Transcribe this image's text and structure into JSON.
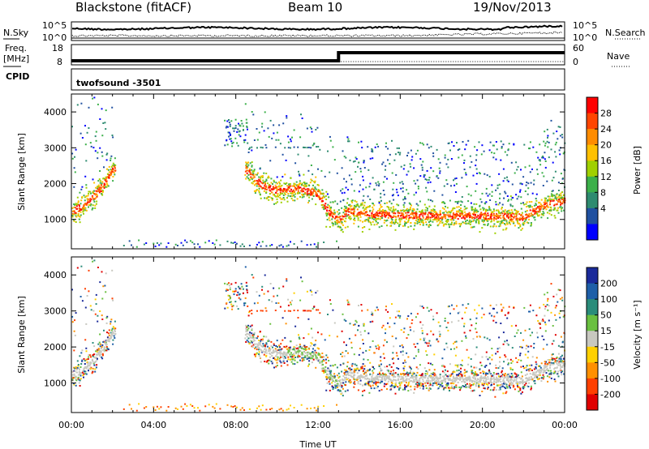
{
  "header": {
    "station": "Blackstone (fitACF)",
    "beam": "Beam 10",
    "date": "19/Nov/2013"
  },
  "noise_panel": {
    "left_label": "N.Sky",
    "right_label": "N.Search",
    "left_ticks": [
      "10^5",
      "10^0"
    ],
    "right_ticks": [
      "10^5",
      "10^0"
    ]
  },
  "freq_panel": {
    "left_label_line1": "Freq.",
    "left_label_line2": "[MHz]",
    "right_label": "Nave",
    "left_ticks": [
      "18",
      "8"
    ],
    "right_ticks": [
      "60",
      "0"
    ]
  },
  "cpid_panel": {
    "label": "CPID",
    "program": "twofsound  -3501"
  },
  "x_axis": {
    "title": "Time UT",
    "ticks": [
      "00:00",
      "04:00",
      "08:00",
      "12:00",
      "16:00",
      "20:00",
      "00:00"
    ]
  },
  "power_panel": {
    "ylabel": "Slant Range [km]",
    "yticks": [
      "4000",
      "3000",
      "2000",
      "1000"
    ],
    "colorbar_title": "Power [dB]",
    "colorbar_ticks": [
      "28",
      "24",
      "20",
      "16",
      "12",
      "8",
      "4"
    ],
    "colors": [
      "#ff0000",
      "#ff4500",
      "#ff8c00",
      "#ffc000",
      "#a0d000",
      "#3cb04a",
      "#2e8b70",
      "#2050a0",
      "#0000ff"
    ]
  },
  "velocity_panel": {
    "ylabel": "Slant Range [km]",
    "yticks": [
      "4000",
      "3000",
      "2000",
      "1000"
    ],
    "colorbar_title": "Velocity [m s⁻¹]",
    "colorbar_ticks": [
      "200",
      "100",
      "50",
      "15",
      "-15",
      "-50",
      "-100",
      "-200"
    ],
    "colors": [
      "#1a2a9a",
      "#1e5fa8",
      "#2a8c7a",
      "#6ac040",
      "#c8c8c0",
      "#ffd000",
      "#ff9000",
      "#ff4000",
      "#e00000"
    ]
  },
  "chart_data": [
    {
      "type": "heatmap",
      "title": "Power [dB]",
      "xlabel": "Time UT",
      "ylabel": "Slant Range [km]",
      "xlim": [
        0,
        24
      ],
      "ylim": [
        180,
        4500
      ],
      "zlim": [
        0,
        30
      ],
      "trace_x": [
        0.0,
        0.5,
        1.0,
        1.5,
        2.0,
        8.5,
        9.0,
        9.5,
        10.0,
        11.0,
        12.0,
        12.5,
        13.0,
        13.5,
        14.0,
        16.0,
        18.0,
        20.0,
        22.0,
        23.0,
        24.0
      ],
      "trace_y": [
        1200,
        1350,
        1600,
        1900,
        2400,
        2400,
        2050,
        1850,
        1800,
        1850,
        1700,
        1200,
        950,
        1250,
        1150,
        1100,
        1080,
        1090,
        1050,
        1400,
        1500
      ]
    },
    {
      "type": "heatmap",
      "title": "Velocity [m s⁻¹]",
      "xlabel": "Time UT",
      "ylabel": "Slant Range [km]",
      "xlim": [
        0,
        24
      ],
      "ylim": [
        180,
        4500
      ],
      "zlim": [
        -200,
        200
      ],
      "trace_x": [
        0.0,
        0.5,
        1.0,
        1.5,
        2.0,
        8.5,
        9.0,
        9.5,
        10.0,
        11.0,
        12.0,
        12.5,
        13.0,
        13.5,
        14.0,
        16.0,
        18.0,
        20.0,
        22.0,
        23.0,
        24.0
      ],
      "trace_y": [
        1200,
        1350,
        1600,
        1900,
        2400,
        2400,
        2050,
        1850,
        1800,
        1850,
        1700,
        1200,
        950,
        1250,
        1150,
        1100,
        1080,
        1090,
        1050,
        1400,
        1500
      ]
    },
    {
      "type": "line",
      "title": "Freq. [MHz]",
      "x": [
        0,
        13,
        13,
        24
      ],
      "values": [
        10,
        10,
        14,
        14
      ],
      "ylim": [
        8,
        18
      ]
    }
  ]
}
